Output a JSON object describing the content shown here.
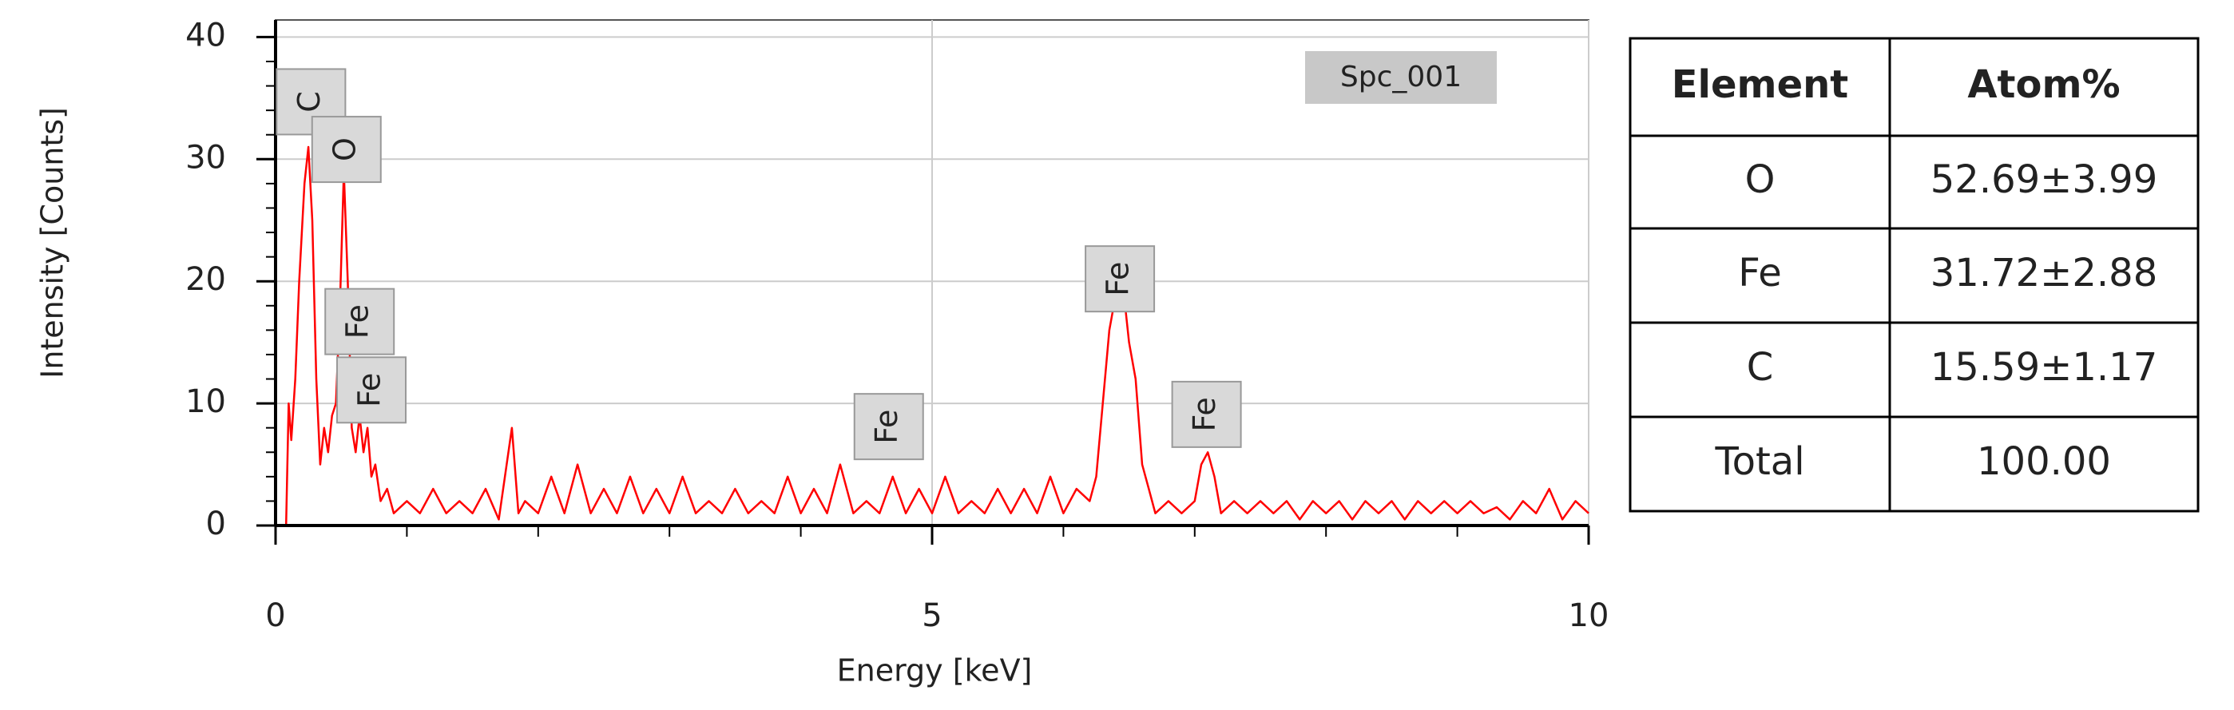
{
  "chart_data": {
    "type": "line",
    "x_label": "Energy [keV]",
    "y_label": "Intensity [Counts]",
    "xlim": [
      0,
      10
    ],
    "ylim": [
      0,
      41.4
    ],
    "xticks": [
      0,
      5,
      10
    ],
    "yticks": [
      0,
      10,
      20,
      30,
      40
    ],
    "xminorticks": [
      1,
      2,
      3,
      4,
      6,
      7,
      8,
      9
    ],
    "yminorticks": [
      2,
      4,
      6,
      8,
      12,
      14,
      16,
      18,
      22,
      24,
      26,
      28,
      32,
      34,
      36,
      38
    ],
    "grid": true,
    "legend": "top-right",
    "x": [
      0,
      0.08,
      0.1,
      0.12,
      0.15,
      0.18,
      0.22,
      0.25,
      0.28,
      0.31,
      0.34,
      0.37,
      0.4,
      0.43,
      0.46,
      0.49,
      0.52,
      0.55,
      0.58,
      0.61,
      0.64,
      0.67,
      0.7,
      0.73,
      0.76,
      0.8,
      0.85,
      0.9,
      1.0,
      1.1,
      1.2,
      1.3,
      1.4,
      1.5,
      1.6,
      1.7,
      1.8,
      1.85,
      1.9,
      2.0,
      2.1,
      2.2,
      2.3,
      2.4,
      2.5,
      2.6,
      2.7,
      2.8,
      2.9,
      3.0,
      3.1,
      3.2,
      3.3,
      3.4,
      3.5,
      3.6,
      3.7,
      3.8,
      3.9,
      4.0,
      4.1,
      4.2,
      4.3,
      4.4,
      4.5,
      4.6,
      4.7,
      4.8,
      4.9,
      5.0,
      5.1,
      5.2,
      5.3,
      5.4,
      5.5,
      5.6,
      5.7,
      5.8,
      5.9,
      6.0,
      6.1,
      6.2,
      6.25,
      6.3,
      6.35,
      6.4,
      6.45,
      6.5,
      6.55,
      6.6,
      6.65,
      6.7,
      6.8,
      6.9,
      7.0,
      7.05,
      7.1,
      7.15,
      7.2,
      7.3,
      7.4,
      7.5,
      7.6,
      7.7,
      7.8,
      7.9,
      8.0,
      8.1,
      8.2,
      8.3,
      8.4,
      8.5,
      8.6,
      8.7,
      8.8,
      8.9,
      9.0,
      9.1,
      9.2,
      9.3,
      9.4,
      9.5,
      9.6,
      9.7,
      9.8,
      9.9,
      10.0
    ],
    "series": [
      {
        "name": "Spc_001",
        "color": "#ff0000",
        "values": [
          0,
          0,
          10,
          7,
          12,
          20,
          28,
          31,
          25,
          12,
          5,
          8,
          6,
          9,
          10,
          18,
          29,
          20,
          8,
          6,
          9,
          6,
          8,
          4,
          5,
          2,
          3,
          1,
          2,
          1,
          3,
          1,
          2,
          1,
          3,
          0.5,
          8,
          1,
          2,
          1,
          4,
          1,
          5,
          1,
          3,
          1,
          4,
          1,
          3,
          1,
          4,
          1,
          2,
          1,
          3,
          1,
          2,
          1,
          4,
          1,
          3,
          1,
          5,
          1,
          2,
          1,
          4,
          1,
          3,
          1,
          4,
          1,
          2,
          1,
          3,
          1,
          3,
          1,
          4,
          1,
          3,
          2,
          4,
          10,
          16,
          19,
          20,
          15,
          12,
          5,
          3,
          1,
          2,
          1,
          2,
          5,
          6,
          4,
          1,
          2,
          1,
          2,
          1,
          2,
          0.5,
          2,
          1,
          2,
          0.5,
          2,
          1,
          2,
          0.5,
          2,
          1,
          2,
          1,
          2,
          1,
          1.5,
          0.5,
          2,
          1,
          3,
          0.5,
          2,
          1
        ]
      }
    ],
    "annotations": [
      {
        "text": "C",
        "x": 0.27,
        "y": 34.7
      },
      {
        "text": "O",
        "x": 0.54,
        "y": 30.8
      },
      {
        "text": "Fe",
        "x": 0.64,
        "y": 16.7
      },
      {
        "text": "Fe",
        "x": 0.73,
        "y": 11.1
      },
      {
        "text": "Fe",
        "x": 4.67,
        "y": 8.1
      },
      {
        "text": "Fe",
        "x": 6.43,
        "y": 20.2
      },
      {
        "text": "Fe",
        "x": 7.09,
        "y": 9.1
      }
    ]
  },
  "table": {
    "header": [
      "Element",
      "Atom%"
    ],
    "rows": [
      [
        "O",
        "52.69±3.99"
      ],
      [
        "Fe",
        "31.72±2.88"
      ],
      [
        "C",
        "15.59±1.17"
      ],
      [
        "Total",
        "100.00"
      ]
    ]
  }
}
